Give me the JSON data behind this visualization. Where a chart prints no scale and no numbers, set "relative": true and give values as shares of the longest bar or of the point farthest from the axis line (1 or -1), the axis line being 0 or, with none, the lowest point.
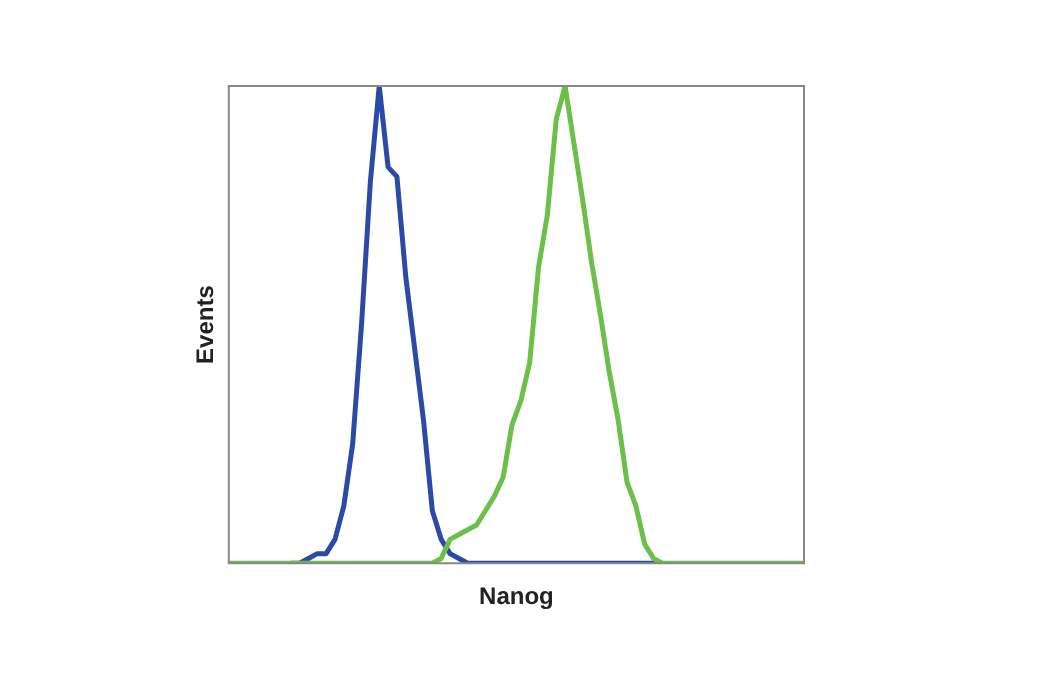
{
  "chart_data": {
    "type": "line",
    "relative": true,
    "xlabel": "Nanog",
    "ylabel": "Events",
    "categories": [
      null,
      null,
      null,
      null,
      null,
      null,
      null,
      null,
      null,
      null,
      null,
      null,
      null,
      null,
      null,
      null,
      null,
      null,
      null,
      null,
      null,
      null,
      null,
      null,
      null,
      null,
      null,
      null,
      null,
      null,
      null,
      null,
      null,
      null,
      null,
      null,
      null,
      null,
      null,
      null,
      null,
      null,
      null,
      null,
      null,
      null,
      null,
      null,
      null,
      null,
      null,
      null,
      null,
      null,
      null,
      null,
      null,
      null,
      null,
      null,
      null,
      null,
      null,
      null,
      null,
      null
    ],
    "series": [
      {
        "color": "#2b4aa8",
        "values": [
          null,
          null,
          null,
          null,
          null,
          null,
          null,
          0,
          0,
          0.01,
          0.02,
          0.02,
          0.05,
          0.12,
          0.25,
          0.5,
          0.8,
          1,
          0.83,
          0.81,
          0.6,
          0.45,
          0.3,
          0.11,
          0.05,
          0.02,
          0.01,
          0,
          0,
          0,
          0,
          0,
          0,
          0,
          0,
          0,
          0,
          0,
          0,
          0,
          0,
          0,
          0,
          0,
          0,
          0,
          0,
          0,
          0,
          0,
          null,
          null,
          null,
          null,
          null,
          null,
          null,
          null,
          null,
          null,
          null,
          null,
          null,
          null,
          null,
          null
        ]
      },
      {
        "color": "#6cc04a",
        "values": [
          0,
          0,
          0,
          0,
          0,
          0,
          0,
          0,
          0,
          0,
          0,
          0,
          0,
          0,
          0,
          0,
          0,
          0,
          0,
          0,
          0,
          0,
          0,
          0,
          0.01,
          0.05,
          0.06,
          0.07,
          0.08,
          0.11,
          0.14,
          0.18,
          0.29,
          0.34,
          0.42,
          0.62,
          0.73,
          0.93,
          1,
          0.88,
          0.76,
          0.63,
          0.52,
          0.4,
          0.3,
          0.17,
          0.12,
          0.04,
          0.01,
          0,
          0,
          0,
          0,
          0,
          0,
          0,
          0,
          0,
          0,
          0,
          0,
          0,
          0,
          0,
          0,
          0
        ]
      }
    ]
  }
}
